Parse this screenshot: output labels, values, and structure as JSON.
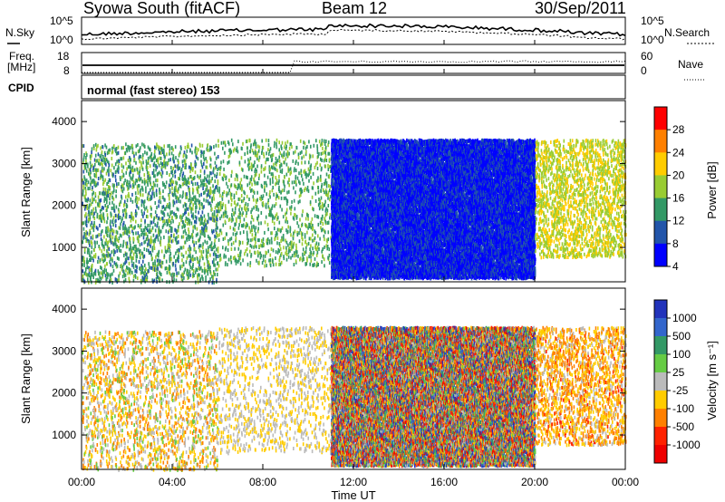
{
  "header": {
    "station": "Syowa South (fitACF)",
    "beam": "Beam 12",
    "date": "30/Sep/2011"
  },
  "noise_panel": {
    "left_label": "N.Sky",
    "right_label": "N.Search",
    "y_ticks_left": [
      "10^5",
      "10^0"
    ],
    "y_ticks_right": [
      "10^5",
      "10^0"
    ]
  },
  "freq_panel": {
    "left_label_line1": "Freq.",
    "left_label_line2": "[MHz]",
    "right_label": "Nave",
    "y_ticks_left": [
      "18",
      "8"
    ],
    "y_ticks_right": [
      "60",
      "0"
    ]
  },
  "cpid_panel": {
    "label": "CPID",
    "text": "normal (fast stereo) 153"
  },
  "axes": {
    "ylabel": "Slant Range [km]",
    "xlabel": "Time UT",
    "y_ticks": [
      "4000",
      "3000",
      "2000",
      "1000"
    ],
    "x_ticks": [
      "00:00",
      "04:00",
      "08:00",
      "12:00",
      "16:00",
      "20:00",
      "00:00"
    ]
  },
  "power_colorbar": {
    "title": "Power [dB]",
    "ticks": [
      "28",
      "24",
      "20",
      "16",
      "12",
      "8",
      "4"
    ],
    "colors": [
      "#ff0000",
      "#ff8000",
      "#ffcc00",
      "#99cc33",
      "#339966",
      "#2255aa",
      "#0000ff"
    ]
  },
  "velocity_colorbar": {
    "title": "Velocity [m s⁻¹]",
    "ticks": [
      "1000",
      "500",
      "100",
      "25",
      "-25",
      "-100",
      "-500",
      "-1000"
    ],
    "colors": [
      "#2233bb",
      "#3366cc",
      "#339966",
      "#66cc44",
      "#bbbbbb",
      "#ffcc00",
      "#ff8000",
      "#ff2200",
      "#ee0000"
    ]
  },
  "chart_data": [
    {
      "type": "heatmap",
      "name": "power",
      "xlim": [
        0,
        24
      ],
      "ylim": [
        180,
        4500
      ],
      "zlim": [
        0,
        32
      ],
      "regions": [
        {
          "t": [
            0,
            6
          ],
          "r": [
            200,
            3500
          ],
          "z": [
            8,
            16
          ],
          "density": 0.12
        },
        {
          "t": [
            6,
            11
          ],
          "r": [
            600,
            3600
          ],
          "z": [
            10,
            16
          ],
          "density": 0.08
        },
        {
          "t": [
            11,
            20
          ],
          "r": [
            300,
            3600
          ],
          "z": [
            2,
            6
          ],
          "density": 0.75
        },
        {
          "t": [
            20,
            24
          ],
          "r": [
            800,
            3600
          ],
          "z": [
            14,
            22
          ],
          "density": 0.18
        }
      ]
    },
    {
      "type": "heatmap",
      "name": "velocity",
      "xlim": [
        0,
        24
      ],
      "ylim": [
        180,
        4500
      ],
      "zlim": [
        -1000,
        1000
      ],
      "regions": [
        {
          "t": [
            0,
            6
          ],
          "r": [
            200,
            3500
          ],
          "z": [
            -500,
            200
          ],
          "density": 0.12
        },
        {
          "t": [
            6,
            11
          ],
          "r": [
            600,
            3600
          ],
          "z": [
            -300,
            100
          ],
          "density": 0.08
        },
        {
          "t": [
            11,
            20
          ],
          "r": [
            300,
            3600
          ],
          "z": [
            -1000,
            1000
          ],
          "density": 0.75
        },
        {
          "t": [
            20,
            24
          ],
          "r": [
            800,
            3600
          ],
          "z": [
            -600,
            0
          ],
          "density": 0.18
        }
      ]
    }
  ]
}
